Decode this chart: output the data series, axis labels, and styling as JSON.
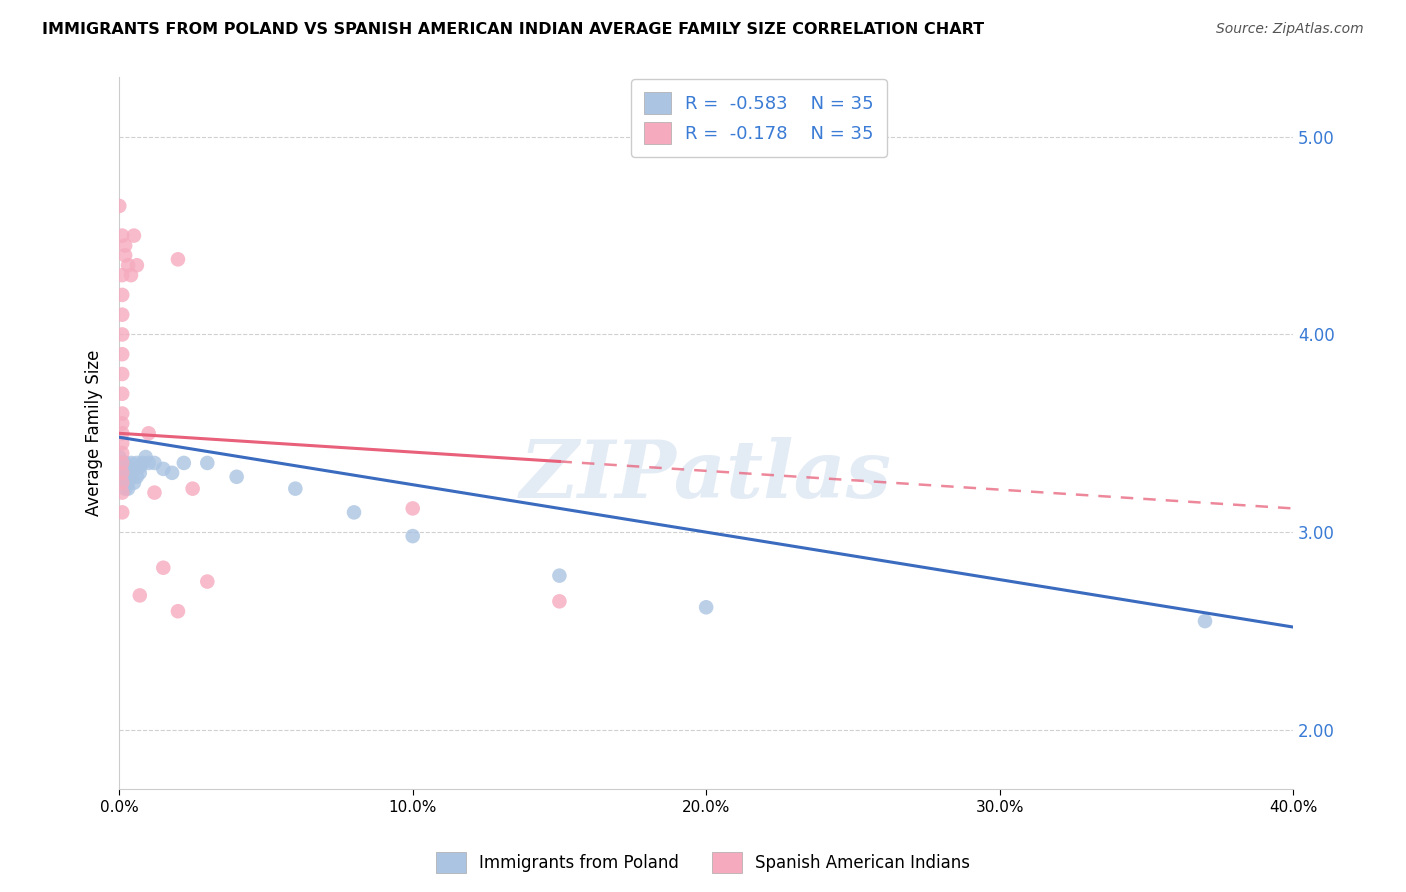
{
  "title": "IMMIGRANTS FROM POLAND VS SPANISH AMERICAN INDIAN AVERAGE FAMILY SIZE CORRELATION CHART",
  "source": "Source: ZipAtlas.com",
  "ylabel": "Average Family Size",
  "right_yticks": [
    2.0,
    3.0,
    4.0,
    5.0
  ],
  "xlim": [
    0.0,
    0.4
  ],
  "ylim": [
    1.7,
    5.3
  ],
  "legend1_R": "-0.583",
  "legend1_N": "35",
  "legend2_R": "-0.178",
  "legend2_N": "35",
  "legend_label1": "Immigrants from Poland",
  "legend_label2": "Spanish American Indians",
  "blue_color": "#aac4e2",
  "pink_color": "#f5aabe",
  "blue_line_color": "#3a6bbf",
  "pink_line_color": "#e8607a",
  "blue_scatter": [
    [
      0.0,
      3.38
    ],
    [
      0.001,
      3.35
    ],
    [
      0.001,
      3.3
    ],
    [
      0.001,
      3.28
    ],
    [
      0.002,
      3.35
    ],
    [
      0.002,
      3.3
    ],
    [
      0.002,
      3.25
    ],
    [
      0.002,
      3.22
    ],
    [
      0.003,
      3.33
    ],
    [
      0.003,
      3.28
    ],
    [
      0.003,
      3.25
    ],
    [
      0.003,
      3.22
    ],
    [
      0.004,
      3.35
    ],
    [
      0.004,
      3.28
    ],
    [
      0.005,
      3.32
    ],
    [
      0.005,
      3.25
    ],
    [
      0.006,
      3.35
    ],
    [
      0.006,
      3.28
    ],
    [
      0.007,
      3.33
    ],
    [
      0.007,
      3.3
    ],
    [
      0.008,
      3.35
    ],
    [
      0.009,
      3.38
    ],
    [
      0.01,
      3.35
    ],
    [
      0.012,
      3.35
    ],
    [
      0.015,
      3.32
    ],
    [
      0.018,
      3.3
    ],
    [
      0.022,
      3.35
    ],
    [
      0.03,
      3.35
    ],
    [
      0.04,
      3.28
    ],
    [
      0.06,
      3.22
    ],
    [
      0.08,
      3.1
    ],
    [
      0.1,
      2.98
    ],
    [
      0.15,
      2.78
    ],
    [
      0.2,
      2.62
    ],
    [
      0.37,
      2.55
    ]
  ],
  "pink_scatter": [
    [
      0.0,
      4.65
    ],
    [
      0.001,
      4.5
    ],
    [
      0.001,
      4.3
    ],
    [
      0.001,
      4.2
    ],
    [
      0.001,
      4.1
    ],
    [
      0.001,
      4.0
    ],
    [
      0.001,
      3.9
    ],
    [
      0.001,
      3.8
    ],
    [
      0.001,
      3.7
    ],
    [
      0.001,
      3.6
    ],
    [
      0.001,
      3.55
    ],
    [
      0.001,
      3.5
    ],
    [
      0.001,
      3.45
    ],
    [
      0.001,
      3.4
    ],
    [
      0.001,
      3.35
    ],
    [
      0.001,
      3.3
    ],
    [
      0.001,
      3.25
    ],
    [
      0.001,
      3.2
    ],
    [
      0.001,
      3.1
    ],
    [
      0.002,
      4.45
    ],
    [
      0.002,
      4.4
    ],
    [
      0.003,
      4.35
    ],
    [
      0.004,
      4.3
    ],
    [
      0.005,
      4.5
    ],
    [
      0.006,
      4.35
    ],
    [
      0.007,
      2.68
    ],
    [
      0.01,
      3.5
    ],
    [
      0.012,
      3.2
    ],
    [
      0.015,
      2.82
    ],
    [
      0.02,
      4.38
    ],
    [
      0.02,
      2.6
    ],
    [
      0.025,
      3.22
    ],
    [
      0.03,
      2.75
    ],
    [
      0.1,
      3.12
    ],
    [
      0.15,
      2.65
    ]
  ],
  "watermark": "ZIPatlas",
  "grid_color": "#d0d0d0",
  "pink_line_x_end": 0.15
}
